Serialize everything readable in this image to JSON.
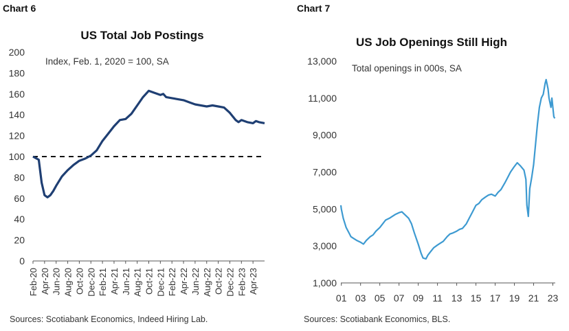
{
  "chart_data": [
    {
      "type": "line",
      "chart_label": "Chart 6",
      "title": "US Total Job Postings",
      "annotation": "Index, Feb. 1, 2020 = 100, SA",
      "source": "Sources: Scotiabank Economics, Indeed Hiring Lab.",
      "xlabel": "",
      "ylabel": "",
      "ylim": [
        0,
        200
      ],
      "yticks": [
        "0",
        "20",
        "40",
        "60",
        "80",
        "100",
        "120",
        "140",
        "160",
        "180",
        "200"
      ],
      "xticks": [
        "Feb-20",
        "Apr-20",
        "Jun-20",
        "Aug-20",
        "Oct-20",
        "Dec-20",
        "Feb-21",
        "Apr-21",
        "Jun-21",
        "Aug-21",
        "Oct-21",
        "Dec-21",
        "Feb-22",
        "Apr-22",
        "Jun-22",
        "Aug-22",
        "Oct-22",
        "Dec-22",
        "Feb-23",
        "Apr-23"
      ],
      "reference_line": 100,
      "line_color": "#1f3f73",
      "reference_color": "#111111",
      "series": [
        {
          "x": [
            0,
            1,
            1.5,
            2,
            2.5,
            3,
            3.5,
            4,
            5,
            6,
            7,
            8,
            9,
            10,
            11,
            12,
            13,
            14,
            15,
            16,
            17,
            18,
            19,
            20,
            21,
            22,
            22.5,
            23,
            24,
            25,
            26,
            27,
            28,
            29,
            30,
            31,
            32,
            33,
            34,
            35,
            35.5,
            36,
            37,
            38,
            38.5,
            39,
            40
          ],
          "y": [
            100,
            97,
            75,
            63,
            61,
            63,
            67,
            72,
            81,
            87,
            92,
            96,
            98,
            101,
            106,
            115,
            122,
            129,
            135,
            136,
            141,
            149,
            157,
            163,
            161,
            159,
            160,
            157,
            156,
            155,
            154,
            152,
            150,
            149,
            148,
            149,
            148,
            147,
            142,
            135,
            133,
            135,
            133,
            132,
            134,
            133,
            132
          ]
        }
      ]
    },
    {
      "type": "line",
      "chart_label": "Chart 7",
      "title": "US Job Openings Still High",
      "annotation": "Total openings in 000s, SA",
      "source": "Sources: Scotiabank Economics, BLS.",
      "xlabel": "",
      "ylabel": "",
      "ylim": [
        1000,
        13000
      ],
      "yticks": [
        "1,000",
        "3,000",
        "5,000",
        "7,000",
        "9,000",
        "11,000",
        "13,000"
      ],
      "xticks": [
        "01",
        "03",
        "05",
        "07",
        "09",
        "11",
        "13",
        "15",
        "17",
        "19",
        "21",
        "23"
      ],
      "line_color": "#3d9ad1",
      "series": [
        {
          "x": [
            2000.95,
            2001.0,
            2001.2,
            2001.5,
            2001.8,
            2002.0,
            2002.3,
            2002.6,
            2003.0,
            2003.3,
            2003.6,
            2004.0,
            2004.3,
            2004.6,
            2005.0,
            2005.3,
            2005.6,
            2006.0,
            2006.3,
            2006.6,
            2007.0,
            2007.3,
            2007.6,
            2008.0,
            2008.3,
            2008.6,
            2009.0,
            2009.3,
            2009.5,
            2009.8,
            2010.0,
            2010.3,
            2010.6,
            2011.0,
            2011.3,
            2011.6,
            2012.0,
            2012.3,
            2012.6,
            2013.0,
            2013.3,
            2013.6,
            2014.0,
            2014.3,
            2014.6,
            2015.0,
            2015.3,
            2015.6,
            2016.0,
            2016.3,
            2016.6,
            2017.0,
            2017.3,
            2017.6,
            2018.0,
            2018.3,
            2018.6,
            2019.0,
            2019.3,
            2019.6,
            2020.0,
            2020.2,
            2020.3,
            2020.45,
            2020.6,
            2020.8,
            2021.0,
            2021.2,
            2021.4,
            2021.6,
            2021.8,
            2022.0,
            2022.2,
            2022.3,
            2022.5,
            2022.6,
            2022.8,
            2022.9,
            2023.0,
            2023.1,
            2023.2
          ],
          "y": [
            5200,
            5000,
            4500,
            4000,
            3700,
            3500,
            3400,
            3300,
            3200,
            3100,
            3300,
            3500,
            3600,
            3800,
            4000,
            4200,
            4400,
            4500,
            4600,
            4700,
            4800,
            4850,
            4700,
            4500,
            4200,
            3700,
            3100,
            2600,
            2350,
            2300,
            2500,
            2700,
            2900,
            3050,
            3150,
            3250,
            3500,
            3650,
            3700,
            3800,
            3900,
            3950,
            4200,
            4500,
            4800,
            5200,
            5300,
            5500,
            5650,
            5750,
            5800,
            5700,
            5900,
            6050,
            6400,
            6700,
            7000,
            7300,
            7500,
            7350,
            7100,
            6600,
            5200,
            4600,
            6100,
            6700,
            7400,
            8500,
            9600,
            10500,
            11000,
            11200,
            11800,
            12000,
            11500,
            11000,
            10500,
            11000,
            10500,
            10000,
            9900
          ]
        }
      ]
    }
  ]
}
